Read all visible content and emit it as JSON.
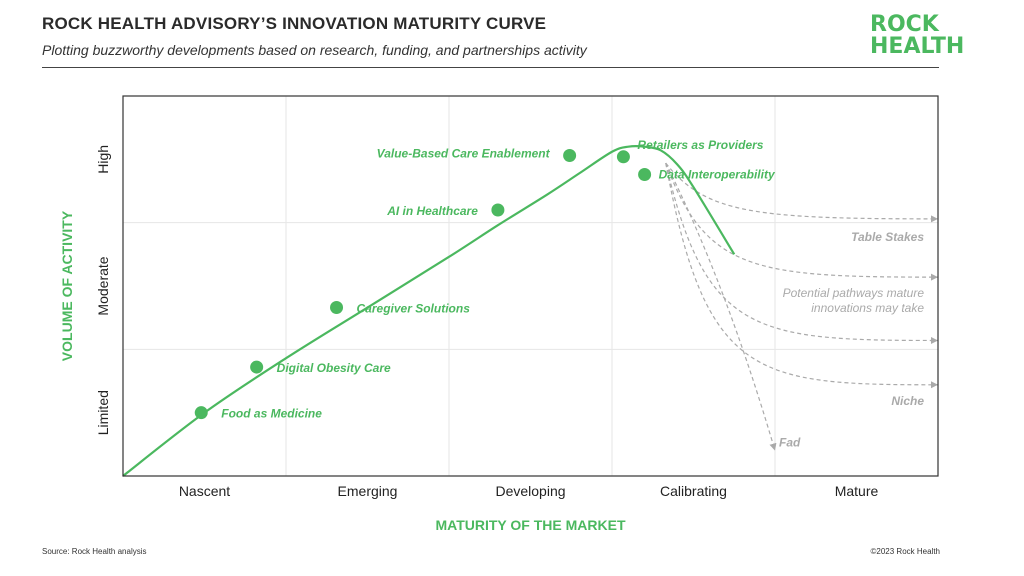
{
  "header": {
    "title": "ROCK HEALTH ADVISORY’S INNOVATION MATURITY CURVE",
    "subtitle": "Plotting buzzworthy developments based on research, funding, and partnerships activity"
  },
  "logo": {
    "line1": "ROCK",
    "line2": "HEALTH"
  },
  "footer": {
    "source": "Source: Rock Health analysis",
    "copyright": "©2023 Rock Health"
  },
  "colors": {
    "accent": "#4bb85f",
    "dashed": "#aaaaaa",
    "grid": "#e6e6e6",
    "frame": "#333333"
  },
  "chart_data": {
    "type": "line",
    "title": "ROCK HEALTH ADVISORY’S INNOVATION MATURITY CURVE",
    "xlabel": "MATURITY OF THE MARKET",
    "ylabel": "VOLUME OF ACTIVITY",
    "x_categories": [
      "Nascent",
      "Emerging",
      "Developing",
      "Calibrating",
      "Mature"
    ],
    "y_categories": [
      "Limited",
      "Moderate",
      "High"
    ],
    "xlim": [
      0,
      5
    ],
    "ylim": [
      0,
      3
    ],
    "grid": true,
    "curve": [
      [
        0,
        0
      ],
      [
        0.5,
        0.5
      ],
      [
        1.0,
        0.93
      ],
      [
        1.5,
        1.33
      ],
      [
        2.0,
        1.73
      ],
      [
        2.3,
        1.98
      ],
      [
        2.6,
        2.22
      ],
      [
        2.8,
        2.39
      ],
      [
        3.0,
        2.56
      ],
      [
        3.1,
        2.6
      ],
      [
        3.2,
        2.6
      ],
      [
        3.3,
        2.57
      ],
      [
        3.4,
        2.46
      ],
      [
        3.5,
        2.28
      ],
      [
        3.75,
        1.75
      ]
    ],
    "points": [
      {
        "label": "Food as Medicine",
        "x": 0.48,
        "y": 0.5
      },
      {
        "label": "Digital Obesity Care",
        "x": 0.82,
        "y": 0.86
      },
      {
        "label": "Caregiver Solutions",
        "x": 1.31,
        "y": 1.33
      },
      {
        "label": "AI in Healthcare",
        "x": 2.3,
        "y": 2.1
      },
      {
        "label": "Value-Based Care Enablement",
        "x": 2.74,
        "y": 2.53
      },
      {
        "label": "Retailers as Providers",
        "x": 3.07,
        "y": 2.52
      },
      {
        "label": "Data Interoperability",
        "x": 3.2,
        "y": 2.38
      }
    ],
    "pathways": [
      {
        "label": "Table Stakes",
        "end": [
          5.0,
          2.03
        ]
      },
      {
        "label": "Potential pathways mature innovations may take",
        "end": [
          5.0,
          1.57
        ]
      },
      {
        "label": "",
        "end": [
          5.0,
          1.07
        ]
      },
      {
        "label": "Niche",
        "end": [
          5.0,
          0.72
        ]
      },
      {
        "label": "Fad",
        "end": [
          4.0,
          0.2
        ]
      }
    ],
    "pathway_note": [
      "Potential pathways mature",
      "innovations may take"
    ]
  }
}
